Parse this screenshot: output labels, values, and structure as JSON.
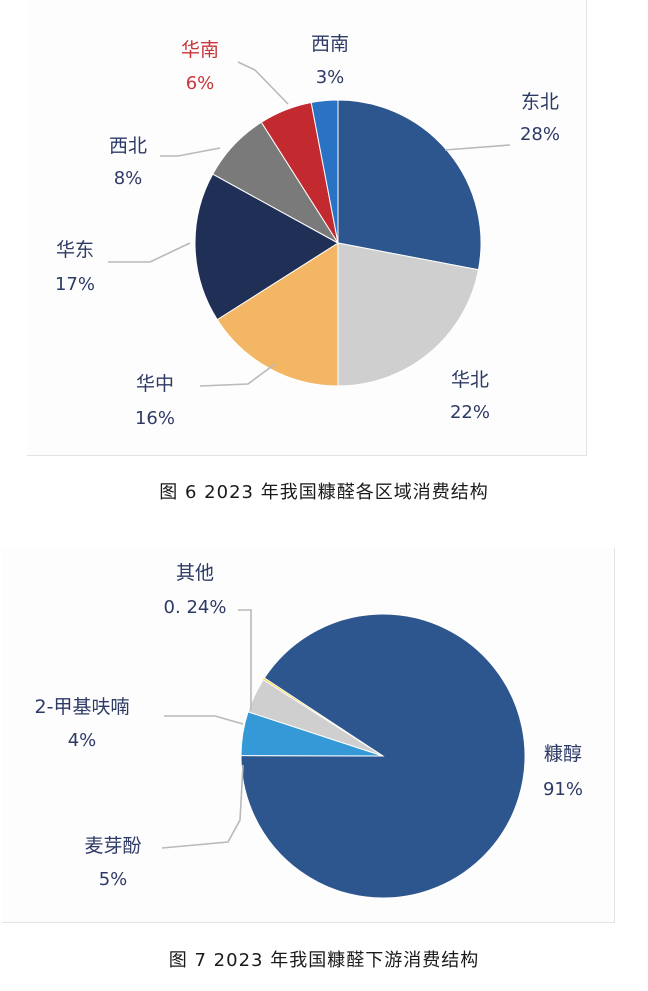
{
  "chart_data": [
    {
      "type": "pie",
      "caption": "图 6  2023 年我国糠醛各区域消费结构",
      "slices": [
        {
          "name": "东北",
          "value": 28,
          "label": "28%",
          "color": "#2d568f"
        },
        {
          "name": "华北",
          "value": 22,
          "label": "22%",
          "color": "#cfcfcf"
        },
        {
          "name": "华中",
          "value": 16,
          "label": "16%",
          "color": "#f3b664"
        },
        {
          "name": "华东",
          "value": 17,
          "label": "17%",
          "color": "#1f2f55"
        },
        {
          "name": "西北",
          "value": 8,
          "label": "8%",
          "color": "#7a7a7a"
        },
        {
          "name": "华南",
          "value": 6,
          "label": "6%",
          "color": "#c22a2f"
        },
        {
          "name": "西南",
          "value": 3,
          "label": "3%",
          "color": "#2a72c3"
        }
      ]
    },
    {
      "type": "pie",
      "caption": "图 7  2023 年我国糠醛下游消费结构",
      "slices": [
        {
          "name": "糠醇",
          "value": 91,
          "label": "91%",
          "color": "#2d568f"
        },
        {
          "name": "麦芽酚",
          "value": 5,
          "label": "5%",
          "color": "#3499d6"
        },
        {
          "name": "2-甲基呋喃",
          "value": 4,
          "label": "4%",
          "color": "#cfcfcf"
        },
        {
          "name": "其他",
          "value": 0.24,
          "label": "0. 24%",
          "color": "#f1d23a"
        }
      ]
    }
  ]
}
